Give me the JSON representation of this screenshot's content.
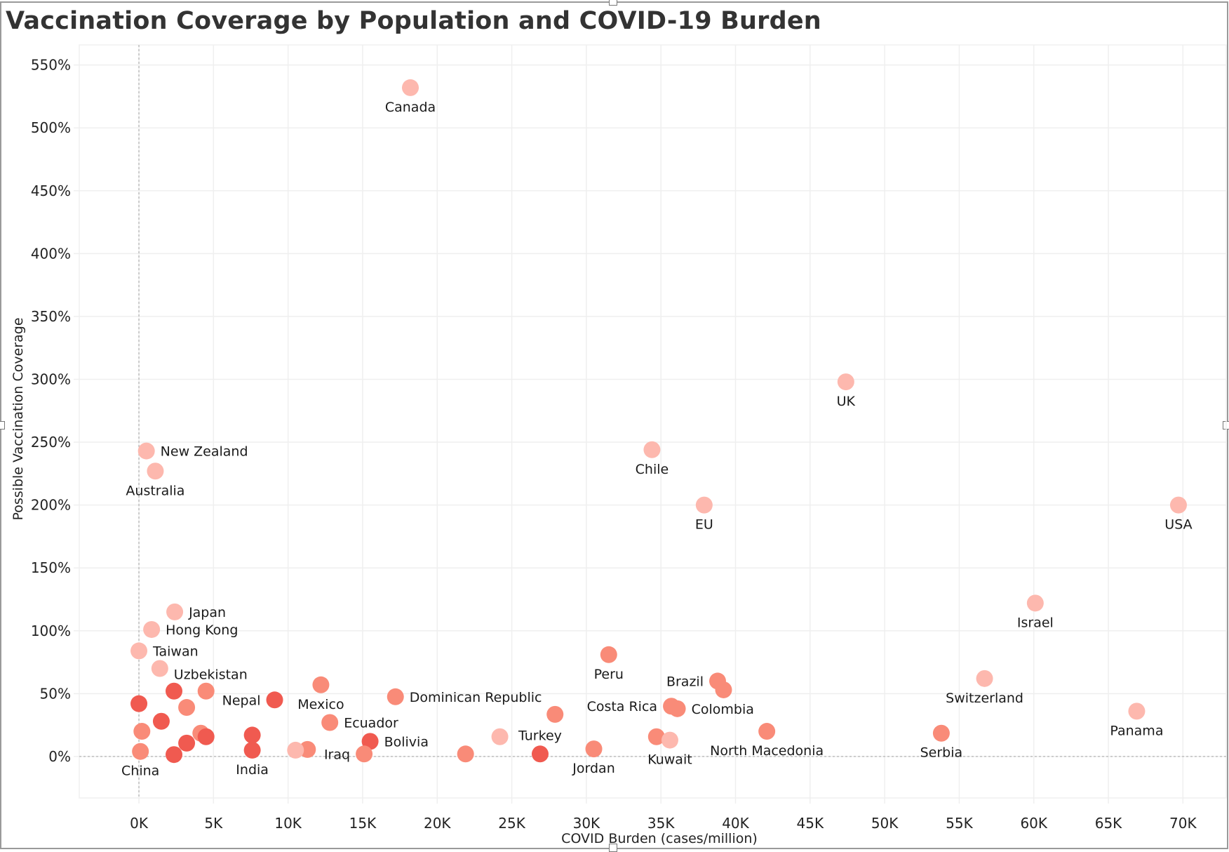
{
  "window": {
    "title": "Vaccination Coverage by Population and COVID-19 Burden"
  },
  "chart_data": {
    "type": "scatter",
    "title": "Vaccination Coverage by Population and COVID-19 Burden",
    "xlabel": "COVID Burden (cases/million)",
    "ylabel": "Possible Vaccination Coverage",
    "xlim": [
      -4000,
      72900
    ],
    "ylim": [
      -33,
      566
    ],
    "x_ticks": [
      0,
      5000,
      10000,
      15000,
      20000,
      25000,
      30000,
      35000,
      40000,
      45000,
      50000,
      55000,
      60000,
      65000,
      70000
    ],
    "x_tick_labels": [
      "0K",
      "5K",
      "10K",
      "15K",
      "20K",
      "25K",
      "30K",
      "35K",
      "40K",
      "45K",
      "50K",
      "55K",
      "60K",
      "65K",
      "70K"
    ],
    "y_ticks": [
      0,
      50,
      100,
      150,
      200,
      250,
      300,
      350,
      400,
      450,
      500,
      550
    ],
    "y_tick_labels": [
      "0%",
      "50%",
      "100%",
      "150%",
      "200%",
      "250%",
      "300%",
      "350%",
      "400%",
      "450%",
      "500%",
      "550%"
    ],
    "grid": true,
    "reference_lines": {
      "x": 0,
      "y": 0
    },
    "color_scale": {
      "light": "#fdb8ae",
      "medium": "#f98b78",
      "dark": "#f05a50"
    },
    "points": [
      {
        "label": "Canada",
        "x": 18200,
        "y": 532,
        "shade": "light",
        "label_pos": "below"
      },
      {
        "label": "UK",
        "x": 47400,
        "y": 298,
        "shade": "light",
        "label_pos": "below"
      },
      {
        "label": "New Zealand",
        "x": 500,
        "y": 243,
        "shade": "light",
        "label_pos": "right"
      },
      {
        "label": "Chile",
        "x": 34400,
        "y": 244,
        "shade": "light",
        "label_pos": "below"
      },
      {
        "label": "Australia",
        "x": 1100,
        "y": 227,
        "shade": "light",
        "label_pos": "below"
      },
      {
        "label": "EU",
        "x": 37900,
        "y": 200,
        "shade": "light",
        "label_pos": "below"
      },
      {
        "label": "USA",
        "x": 69700,
        "y": 200,
        "shade": "light",
        "label_pos": "below"
      },
      {
        "label": "Israel",
        "x": 60100,
        "y": 122,
        "shade": "light",
        "label_pos": "below"
      },
      {
        "label": "Japan",
        "x": 2400,
        "y": 115,
        "shade": "light",
        "label_pos": "right"
      },
      {
        "label": "Hong Kong",
        "x": 850,
        "y": 101,
        "shade": "light",
        "label_pos": "right"
      },
      {
        "label": "Taiwan",
        "x": 0,
        "y": 84,
        "shade": "light",
        "label_pos": "right"
      },
      {
        "label": "Uzbekistan",
        "x": 1400,
        "y": 70,
        "shade": "light",
        "label_pos": "right-below"
      },
      {
        "label": "Peru",
        "x": 31500,
        "y": 81,
        "shade": "medium",
        "label_pos": "below"
      },
      {
        "label": "Switzerland",
        "x": 56700,
        "y": 62,
        "shade": "light",
        "label_pos": "below"
      },
      {
        "label": "Brazil",
        "x": 38800,
        "y": 60,
        "shade": "medium",
        "label_pos": "left"
      },
      {
        "label": "Mexico",
        "x": 12200,
        "y": 57,
        "shade": "medium",
        "label_pos": "below"
      },
      {
        "label": "",
        "x": 2350,
        "y": 52,
        "shade": "dark",
        "label_pos": "none"
      },
      {
        "label": "",
        "x": 4500,
        "y": 52,
        "shade": "medium",
        "label_pos": "none"
      },
      {
        "label": "",
        "x": 39200,
        "y": 53,
        "shade": "medium",
        "label_pos": "none"
      },
      {
        "label": "Dominican Republic",
        "x": 17200,
        "y": 47.5,
        "shade": "medium",
        "label_pos": "right"
      },
      {
        "label": "Nepal",
        "x": 9100,
        "y": 45,
        "shade": "dark",
        "label_pos": "left"
      },
      {
        "label": "",
        "x": 0,
        "y": 42,
        "shade": "dark",
        "label_pos": "none"
      },
      {
        "label": "Costa Rica",
        "x": 35700,
        "y": 40,
        "shade": "medium",
        "label_pos": "left"
      },
      {
        "label": "",
        "x": 3200,
        "y": 39,
        "shade": "medium",
        "label_pos": "none"
      },
      {
        "label": "Colombia",
        "x": 36100,
        "y": 38,
        "shade": "medium",
        "label_pos": "right"
      },
      {
        "label": "Panama",
        "x": 66900,
        "y": 36,
        "shade": "light",
        "label_pos": "below"
      },
      {
        "label": "",
        "x": 27900,
        "y": 33.5,
        "shade": "medium",
        "label_pos": "none"
      },
      {
        "label": "",
        "x": 1500,
        "y": 28,
        "shade": "dark",
        "label_pos": "none"
      },
      {
        "label": "Ecuador",
        "x": 12800,
        "y": 27,
        "shade": "medium",
        "label_pos": "right"
      },
      {
        "label": "",
        "x": 200,
        "y": 20,
        "shade": "medium",
        "label_pos": "none"
      },
      {
        "label": "North Macedonia",
        "x": 42100,
        "y": 20,
        "shade": "medium",
        "label_pos": "below"
      },
      {
        "label": "",
        "x": 4150,
        "y": 18.5,
        "shade": "medium",
        "label_pos": "none"
      },
      {
        "label": "Serbia",
        "x": 53800,
        "y": 18.5,
        "shade": "medium",
        "label_pos": "below"
      },
      {
        "label": "",
        "x": 7600,
        "y": 17,
        "shade": "dark",
        "label_pos": "none"
      },
      {
        "label": "",
        "x": 4500,
        "y": 15.7,
        "shade": "dark",
        "label_pos": "none"
      },
      {
        "label": "",
        "x": 24200,
        "y": 15.7,
        "shade": "light",
        "label_pos": "none"
      },
      {
        "label": "",
        "x": 34700,
        "y": 15.7,
        "shade": "medium",
        "label_pos": "none"
      },
      {
        "label": "Turkey",
        "x": 26900,
        "y": 2,
        "shade": "dark",
        "label_pos": "above"
      },
      {
        "label": "Kuwait",
        "x": 35600,
        "y": 13,
        "shade": "light",
        "label_pos": "below"
      },
      {
        "label": "Bolivia",
        "x": 15500,
        "y": 12,
        "shade": "dark",
        "label_pos": "right"
      },
      {
        "label": "",
        "x": 3200,
        "y": 10.6,
        "shade": "dark",
        "label_pos": "none"
      },
      {
        "label": "Jordan",
        "x": 30500,
        "y": 6,
        "shade": "medium",
        "label_pos": "below"
      },
      {
        "label": "",
        "x": 11300,
        "y": 5.6,
        "shade": "medium",
        "label_pos": "none"
      },
      {
        "label": "",
        "x": 10500,
        "y": 5,
        "shade": "light",
        "label_pos": "none"
      },
      {
        "label": "India",
        "x": 7600,
        "y": 5,
        "shade": "dark",
        "label_pos": "below"
      },
      {
        "label": "China",
        "x": 100,
        "y": 4,
        "shade": "medium",
        "label_pos": "below"
      },
      {
        "label": "Iraq",
        "x": 15100,
        "y": 2,
        "shade": "medium",
        "label_pos": "left"
      },
      {
        "label": "",
        "x": 21900,
        "y": 2,
        "shade": "medium",
        "label_pos": "none"
      },
      {
        "label": "",
        "x": 2350,
        "y": 1.5,
        "shade": "dark",
        "label_pos": "none"
      }
    ]
  }
}
